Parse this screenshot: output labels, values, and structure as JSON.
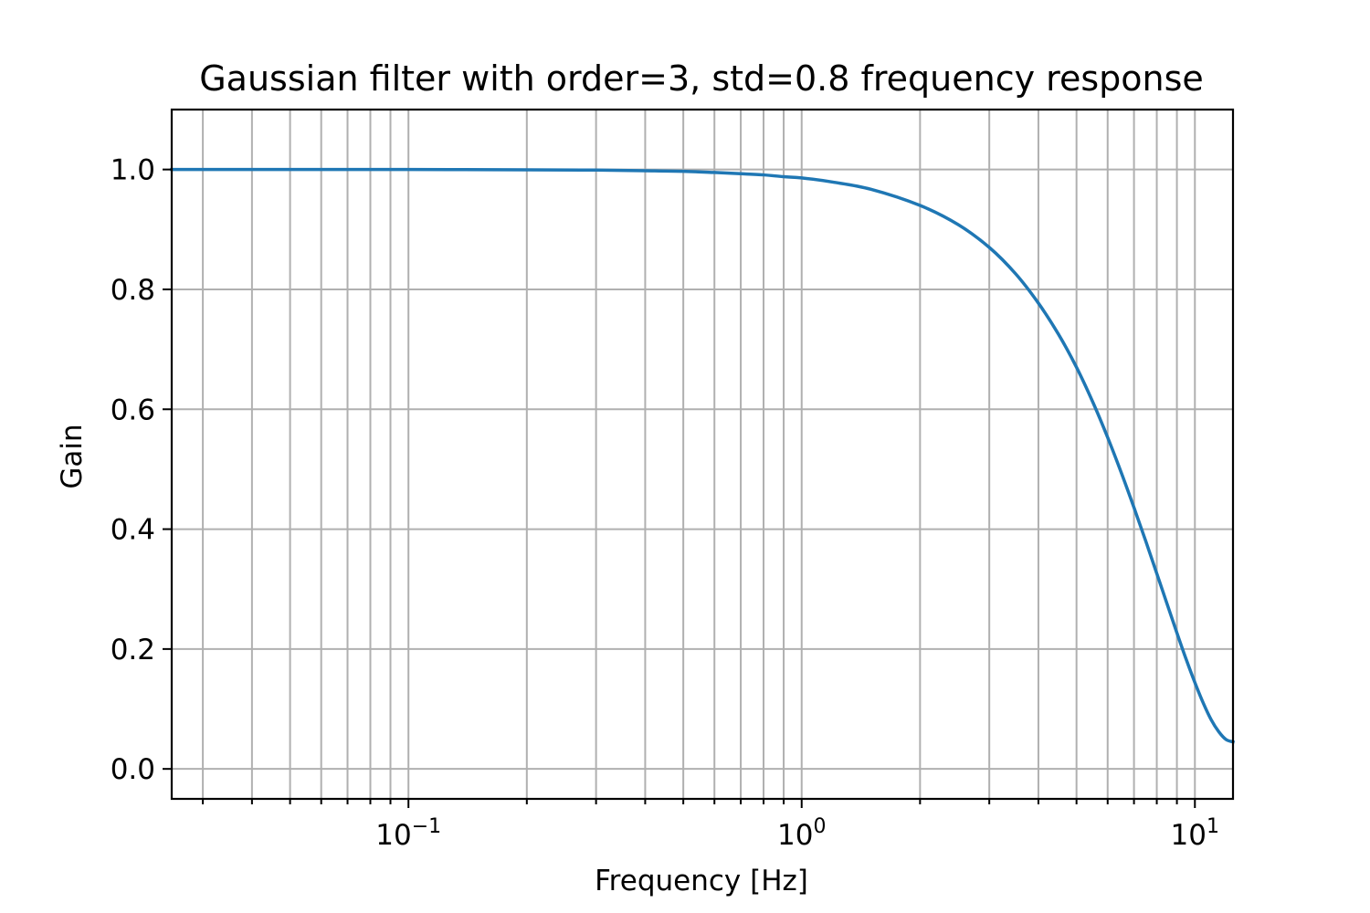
{
  "chart_data": {
    "type": "line",
    "title": "Gaussian filter with order=3, std=0.8 frequency response",
    "xlabel": "Frequency [Hz]",
    "ylabel": "Gain",
    "xscale": "log",
    "xlim": [
      0.025,
      12.5
    ],
    "ylim": [
      -0.05,
      1.1
    ],
    "grid": true,
    "grid_which": "both",
    "x_major_ticks": [
      {
        "value": 0.1,
        "base": "10",
        "exp": "−1"
      },
      {
        "value": 1,
        "base": "10",
        "exp": "0"
      },
      {
        "value": 10,
        "base": "10",
        "exp": "1"
      }
    ],
    "x_minor_ticks": [
      0.03,
      0.04,
      0.05,
      0.06,
      0.07,
      0.08,
      0.09,
      0.2,
      0.3,
      0.4,
      0.5,
      0.6,
      0.7,
      0.8,
      0.9,
      2,
      3,
      4,
      5,
      6,
      7,
      8,
      9
    ],
    "y_ticks": [
      {
        "value": 0.0,
        "label": "0.0"
      },
      {
        "value": 0.2,
        "label": "0.2"
      },
      {
        "value": 0.4,
        "label": "0.4"
      },
      {
        "value": 0.6,
        "label": "0.6"
      },
      {
        "value": 0.8,
        "label": "0.8"
      },
      {
        "value": 1.0,
        "label": "1.0"
      }
    ],
    "series": [
      {
        "color": "#1f77b4",
        "x": [
          0.025,
          0.05,
          0.1,
          0.2,
          0.3,
          0.4,
          0.5,
          0.6,
          0.7,
          0.8,
          0.9,
          1.0,
          1.2,
          1.5,
          2.0,
          2.5,
          3.0,
          3.5,
          4.0,
          4.5,
          5.0,
          5.5,
          6.0,
          6.5,
          7.0,
          7.5,
          8.0,
          8.5,
          9.0,
          9.5,
          10.0,
          10.5,
          11.0,
          11.5,
          12.0,
          12.5
        ],
        "y": [
          1.0,
          1.0,
          1.0,
          0.9995,
          0.999,
          0.998,
          0.997,
          0.995,
          0.993,
          0.991,
          0.988,
          0.986,
          0.979,
          0.967,
          0.94,
          0.908,
          0.87,
          0.826,
          0.777,
          0.725,
          0.67,
          0.612,
          0.553,
          0.494,
          0.436,
          0.38,
          0.326,
          0.275,
          0.227,
          0.183,
          0.144,
          0.11,
          0.082,
          0.062,
          0.049,
          0.045
        ]
      }
    ]
  }
}
